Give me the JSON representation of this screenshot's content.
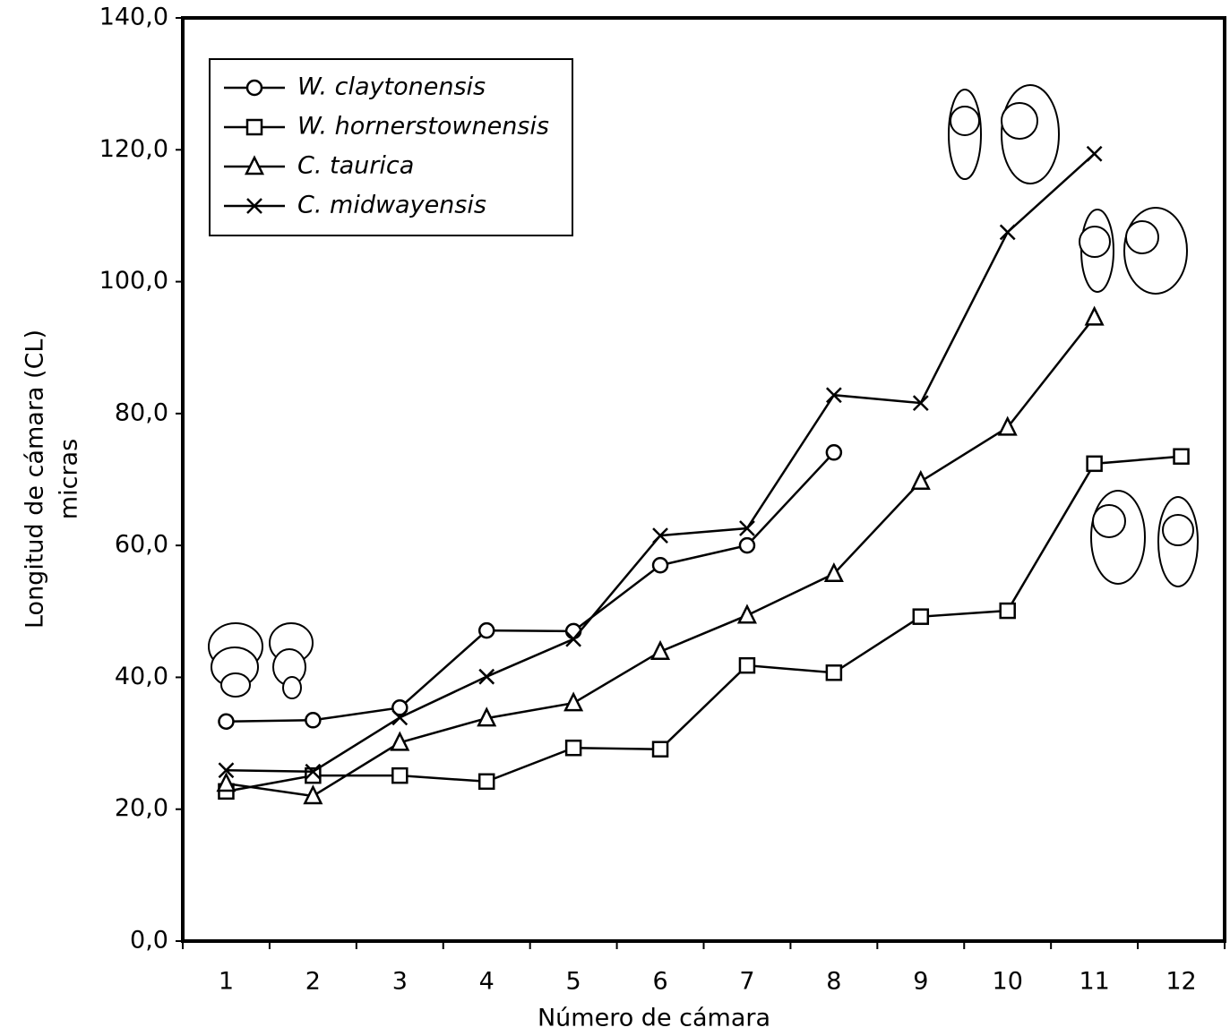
{
  "chart_data": {
    "type": "line",
    "xlabel": "Número de cámara",
    "ylabel": [
      "Longitud de cámara (CL)",
      "micras"
    ],
    "categories": [
      "1",
      "2",
      "3",
      "4",
      "5",
      "6",
      "7",
      "8",
      "9",
      "10",
      "11",
      "12"
    ],
    "ylim": [
      0,
      140
    ],
    "yticks": [
      {
        "value": 0,
        "label": "0,0"
      },
      {
        "value": 20,
        "label": "20,0"
      },
      {
        "value": 40,
        "label": "40,0"
      },
      {
        "value": 60,
        "label": "60,0"
      },
      {
        "value": 80,
        "label": "80,0"
      },
      {
        "value": 100,
        "label": "100,0"
      },
      {
        "value": 120,
        "label": "120,0"
      },
      {
        "value": 140,
        "label": "140,0"
      }
    ],
    "grid": false,
    "legend": "upper left",
    "series": [
      {
        "name": "W. claytonensis",
        "color": "#000000",
        "marker": "circle",
        "values": [
          33.3,
          33.5,
          35.4,
          47.1,
          47.0,
          57.0,
          60.0,
          74.1,
          null,
          null,
          null,
          null
        ]
      },
      {
        "name": "W. hornerstownensis",
        "color": "#000000",
        "marker": "square",
        "values": [
          22.7,
          25.1,
          25.1,
          24.2,
          29.3,
          29.1,
          41.8,
          40.7,
          49.2,
          50.1,
          72.4,
          73.5
        ]
      },
      {
        "name": "C. taurica",
        "color": "#000000",
        "marker": "triangle",
        "values": [
          23.9,
          22.0,
          30.1,
          33.8,
          36.1,
          43.9,
          49.4,
          55.7,
          69.7,
          77.9,
          94.6,
          null
        ]
      },
      {
        "name": "C. midwayensis",
        "color": "#000000",
        "marker": "x",
        "values": [
          25.9,
          25.7,
          33.9,
          40.1,
          45.8,
          61.5,
          62.6,
          82.8,
          81.6,
          107.5,
          119.4,
          null
        ]
      }
    ]
  }
}
